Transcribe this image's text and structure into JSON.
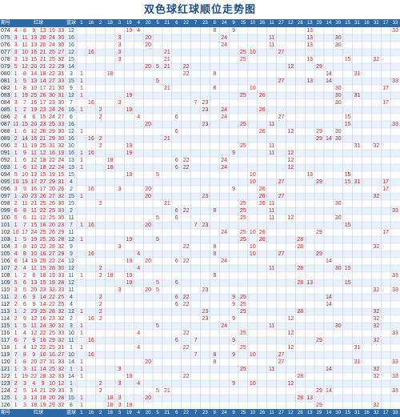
{
  "title": "双色球红球顺位走势图",
  "headers": {
    "period": "期号",
    "red": "红球",
    "blue": "蓝球"
  },
  "position_cols": [
    "1",
    "16",
    "2",
    "18",
    "3",
    "19",
    "4",
    "20",
    "5",
    "21",
    "6",
    "22",
    "7",
    "23",
    "8",
    "24",
    "9",
    "25",
    "10",
    "26",
    "11",
    "27",
    "12",
    "28",
    "13",
    "29",
    "14",
    "30",
    "15",
    "31",
    "16",
    "32",
    "17",
    "33"
  ],
  "rows": [
    {
      "p": "074",
      "r": [
        4,
        8,
        9,
        13,
        19,
        33
      ],
      "b": 12
    },
    {
      "p": "075",
      "r": [
        3,
        11,
        13,
        20,
        24,
        30
      ],
      "b": 16
    },
    {
      "p": "076",
      "r": [
        3,
        11,
        13,
        20,
        24,
        30
      ],
      "b": 16
    },
    {
      "p": "077",
      "r": [
        3,
        10,
        16,
        21,
        25,
        27
      ],
      "b": 12
    },
    {
      "p": "078",
      "r": [
        3,
        13,
        15,
        21,
        25,
        32
      ],
      "b": 15
    },
    {
      "p": "079",
      "r": [
        5,
        12,
        20,
        21,
        22,
        29
      ],
      "b": 14
    },
    {
      "p": "080",
      "r": [
        1,
        8,
        14,
        18,
        22,
        31
      ],
      "b": 3
    },
    {
      "p": "081",
      "r": [
        1,
        5,
        13,
        14,
        27,
        33
      ],
      "b": 15
    },
    {
      "p": "082",
      "r": [
        1,
        8,
        10,
        17,
        21,
        30
      ],
      "b": 9
    },
    {
      "p": "083",
      "r": [
        1,
        19,
        25,
        26,
        30,
        31
      ],
      "b": 12
    },
    {
      "p": "084",
      "r": [
        3,
        7,
        16,
        17,
        23,
        30
      ],
      "b": 7
    },
    {
      "p": "085",
      "r": [
        1,
        2,
        19,
        23,
        24,
        26
      ],
      "b": 16
    },
    {
      "p": "086",
      "r": [
        2,
        4,
        6,
        15,
        24,
        27
      ],
      "b": 6
    },
    {
      "p": "087",
      "r": [
        11,
        15,
        20,
        23,
        25,
        33
      ],
      "b": 16
    },
    {
      "p": "088",
      "r": [
        1,
        6,
        12,
        26,
        29,
        30
      ],
      "b": 12
    },
    {
      "p": "089",
      "r": [
        2,
        14,
        16,
        21,
        29,
        30
      ],
      "b": 16
    },
    {
      "p": "090",
      "r": [
        2,
        11,
        19,
        25,
        31,
        32
      ],
      "b": 10
    },
    {
      "p": "091",
      "r": [
        1,
        9,
        11,
        12,
        16,
        19
      ],
      "b": 16
    },
    {
      "p": "092",
      "r": [
        1,
        6,
        12,
        18,
        22,
        24
      ],
      "b": 13
    },
    {
      "p": "093",
      "r": [
        1,
        6,
        12,
        18,
        22,
        24
      ],
      "b": 13
    },
    {
      "p": "094",
      "r": [
        5,
        10,
        13,
        15,
        19,
        15
      ],
      "b": 15
    },
    {
      "p": "095",
      "r": [
        10,
        15,
        17,
        27,
        29,
        31
      ],
      "b": 4
    },
    {
      "p": "096",
      "r": [
        3,
        9,
        16,
        17,
        20,
        26
      ],
      "b": 2
    },
    {
      "p": "097",
      "r": [
        1,
        20,
        23,
        26,
        27,
        32
      ],
      "b": 15
    },
    {
      "p": "098",
      "r": [
        2,
        11,
        21,
        25,
        26,
        30
      ],
      "b": 15
    },
    {
      "p": "099",
      "r": [
        6,
        8,
        11,
        22,
        25,
        33
      ],
      "b": 2
    },
    {
      "p": "100",
      "r": [
        5,
        6,
        11,
        12,
        25,
        30
      ],
      "b": 11
    },
    {
      "p": "101",
      "r": [
        1,
        7,
        15,
        16,
        20,
        23
      ],
      "b": 7
    },
    {
      "p": "102",
      "r": [
        10,
        17,
        24,
        25,
        26,
        29
      ],
      "b": 11
    },
    {
      "p": "103",
      "r": [
        1,
        5,
        19,
        25,
        26,
        28
      ],
      "b": 12
    },
    {
      "p": "104",
      "r": [
        3,
        8,
        10,
        22,
        28,
        32
      ],
      "b": 9
    },
    {
      "p": "105",
      "r": [
        4,
        8,
        10,
        16,
        27,
        29
      ],
      "b": 9
    },
    {
      "p": "106",
      "r": [
        6,
        14,
        19,
        20,
        22,
        24
      ],
      "b": 12
    },
    {
      "p": "107",
      "r": [
        2,
        4,
        11,
        15,
        28,
        30
      ],
      "b": 12
    },
    {
      "p": "108",
      "r": [
        1,
        2,
        8,
        18,
        19,
        33
      ],
      "b": 11
    },
    {
      "p": "109",
      "r": [
        5,
        6,
        13,
        15,
        19,
        28
      ],
      "b": 12
    },
    {
      "p": "110",
      "r": [
        3,
        5,
        20,
        23,
        32,
        33
      ],
      "b": 11
    },
    {
      "p": "111",
      "r": [
        2,
        6,
        9,
        14,
        22,
        25
      ],
      "b": 4
    },
    {
      "p": "112",
      "r": [
        2,
        6,
        9,
        14,
        22,
        25
      ],
      "b": 4
    },
    {
      "p": "113",
      "r": [
        1,
        2,
        23,
        25,
        28,
        32
      ],
      "b": 12
    },
    {
      "p": "114",
      "r": [
        2,
        9,
        12,
        16,
        23,
        32
      ],
      "b": 2
    },
    {
      "p": "115",
      "r": [
        1,
        5,
        11,
        24,
        30,
        32
      ],
      "b": 3
    },
    {
      "p": "116",
      "r": [
        1,
        4,
        12,
        22,
        25,
        33
      ],
      "b": 10
    },
    {
      "p": "117",
      "r": [
        6,
        7,
        9,
        16,
        29,
        32
      ],
      "b": 11
    },
    {
      "p": "118",
      "r": [
        1,
        4,
        12,
        22,
        25,
        31
      ],
      "b": 1
    },
    {
      "p": "119",
      "r": [
        7,
        8,
        9,
        10,
        16,
        27
      ],
      "b": 10
    },
    {
      "p": "120",
      "r": [
        1,
        8,
        20,
        27,
        31,
        33
      ],
      "b": 14
    },
    {
      "p": "121",
      "r": [
        1,
        3,
        11,
        14,
        25,
        32
      ],
      "b": 1
    },
    {
      "p": "122",
      "r": [
        1,
        19,
        22,
        28,
        32,
        33
      ],
      "b": 14
    },
    {
      "p": "123",
      "r": [
        2,
        3,
        4,
        9,
        10,
        12
      ],
      "b": 1
    },
    {
      "p": "124",
      "r": [
        2,
        5,
        14,
        21,
        29,
        33
      ],
      "b": 3
    },
    {
      "p": "125",
      "r": [
        1,
        3,
        13,
        18,
        20,
        28
      ],
      "b": 15
    },
    {
      "p": "126",
      "r": [
        1,
        3,
        18,
        19,
        29,
        32
      ],
      "b": 8
    }
  ],
  "colors": {
    "header_bg": "#2d6aa8",
    "row_odd": "#ffffff",
    "row_even": "#eaf1fb",
    "red_text": "#d61f1f",
    "blue_text": "#1c52b8",
    "grid": "#b9c9de"
  }
}
